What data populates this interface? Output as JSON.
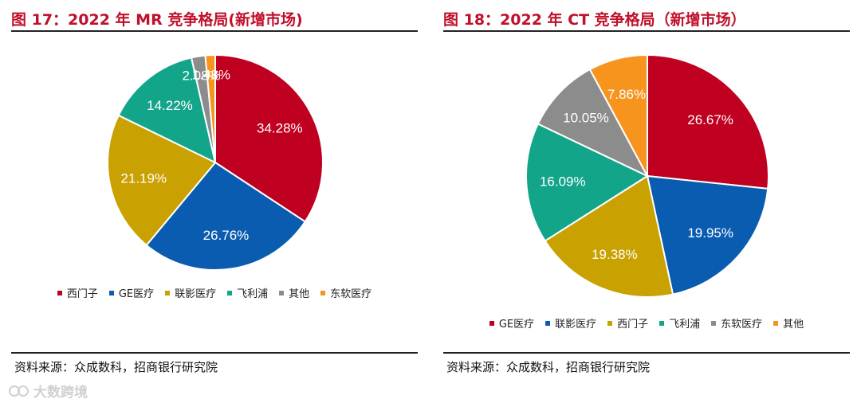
{
  "charts": [
    {
      "title": "图 17：2022 年 MR 竞争格局(新增市场)",
      "source": "资料来源：众成数科，招商银行研究院"
    },
    {
      "title": "图 18：2022 年 CT 竞争格局（新增市场）",
      "source": "资料来源：众成数科，招商银行研究院"
    }
  ],
  "chart_data": [
    {
      "type": "pie",
      "title": "2022 年 MR 竞争格局(新增市场)",
      "legend_position": "bottom",
      "slices": [
        {
          "label": "西门子",
          "value": 34.28,
          "value_label": "34.28%",
          "color": "#c00020"
        },
        {
          "label": "GE医疗",
          "value": 26.76,
          "value_label": "26.76%",
          "color": "#0a5cb0"
        },
        {
          "label": "联影医疗",
          "value": 21.19,
          "value_label": "21.19%",
          "color": "#c9a100"
        },
        {
          "label": "飞利浦",
          "value": 14.22,
          "value_label": "14.22%",
          "color": "#13a58a"
        },
        {
          "label": "其他",
          "value": 2.08,
          "value_label": "2.08%",
          "color": "#8c8c8c"
        },
        {
          "label": "东软医疗",
          "value": 1.48,
          "value_label": "1.48%",
          "color": "#f7941d"
        }
      ]
    },
    {
      "type": "pie",
      "title": "2022 年 CT 竞争格局（新增市场）",
      "legend_position": "bottom",
      "slices": [
        {
          "label": "GE医疗",
          "value": 26.67,
          "value_label": "26.67%",
          "color": "#c00020"
        },
        {
          "label": "联影医疗",
          "value": 19.95,
          "value_label": "19.95%",
          "color": "#0a5cb0"
        },
        {
          "label": "西门子",
          "value": 19.38,
          "value_label": "19.38%",
          "color": "#c9a100"
        },
        {
          "label": "飞利浦",
          "value": 16.09,
          "value_label": "16.09%",
          "color": "#13a58a"
        },
        {
          "label": "东软医疗",
          "value": 10.05,
          "value_label": "10.05%",
          "color": "#8c8c8c"
        },
        {
          "label": "其他",
          "value": 7.86,
          "value_label": "7.86%",
          "color": "#f7941d"
        }
      ]
    }
  ],
  "watermark": {
    "text": "大数跨境"
  }
}
